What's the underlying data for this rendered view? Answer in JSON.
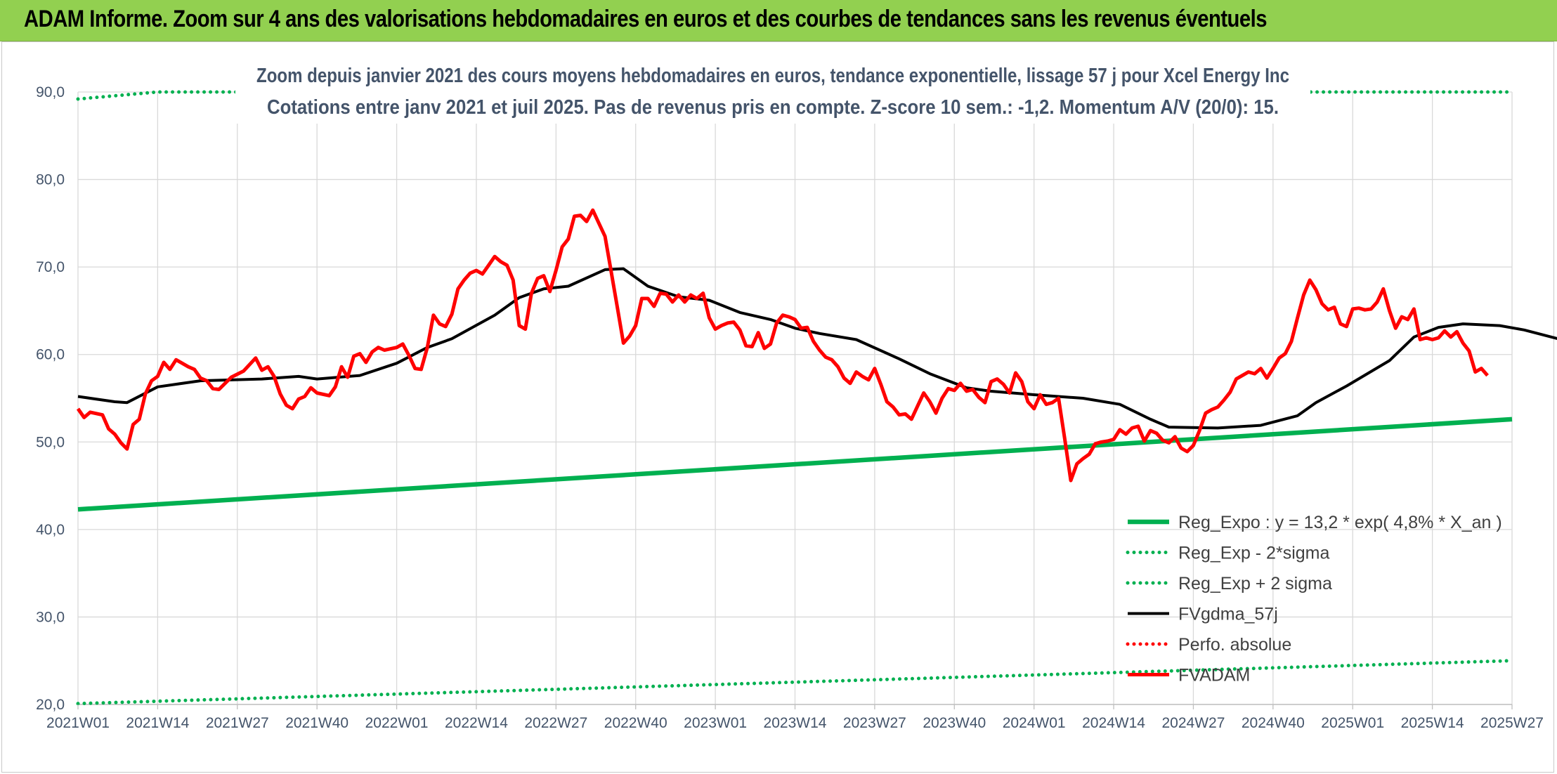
{
  "header": {
    "title": "ADAM Informe. Zoom sur 4 ans des valorisations hebdomadaires en euros et des courbes de tendances sans les revenus éventuels"
  },
  "chart_data": {
    "type": "line",
    "title": "Zoom depuis janvier 2021 des cours moyens hebdomadaires en euros, tendance exponentielle, lissage 57 j pour Xcel Energy Inc",
    "subtitle": "Cotations entre janv 2021 et juil 2025. Pas de revenus pris en compte. Z-score 10 sem.: -1,2. Momentum A/V (20/0): 15.",
    "xlabel": "",
    "ylabel": "",
    "ylim": [
      20,
      90
    ],
    "y_ticks": [
      "20,0",
      "30,0",
      "40,0",
      "50,0",
      "60,0",
      "70,0",
      "80,0",
      "90,0"
    ],
    "x_ticks": [
      "2021W01",
      "2021W14",
      "2021W27",
      "2021W40",
      "2022W01",
      "2022W14",
      "2022W27",
      "2022W40",
      "2023W01",
      "2023W14",
      "2023W27",
      "2023W40",
      "2024W01",
      "2024W14",
      "2024W27",
      "2024W40",
      "2025W01",
      "2025W14",
      "2025W27"
    ],
    "grid": true,
    "legend_position": "bottom-right",
    "series": [
      {
        "name": "Reg_Expo : y = 13,2 * exp( 4,8% *  X_an )",
        "style": "solid",
        "color": "#00b050",
        "values": [
          [
            0,
            42.3
          ],
          [
            234,
            52.6
          ]
        ]
      },
      {
        "name": "Reg_Exp - 2*sigma",
        "style": "dotted",
        "color": "#00b050",
        "values": [
          [
            0,
            20.1
          ],
          [
            234,
            25.0
          ]
        ]
      },
      {
        "name": "Reg_Exp + 2 sigma",
        "style": "dotted",
        "color": "#00b050",
        "values": [
          [
            0,
            89.2
          ],
          [
            13,
            90.0
          ],
          [
            234,
            90.0
          ]
        ]
      },
      {
        "name": "FVgdma_57j",
        "style": "solid",
        "color": "#000000",
        "values": [
          [
            0,
            55.2
          ],
          [
            6,
            54.6
          ],
          [
            8,
            54.5
          ],
          [
            13,
            56.3
          ],
          [
            20,
            57.0
          ],
          [
            30,
            57.2
          ],
          [
            36,
            57.5
          ],
          [
            39,
            57.2
          ],
          [
            46,
            57.6
          ],
          [
            52,
            59.0
          ],
          [
            57,
            60.8
          ],
          [
            61,
            61.8
          ],
          [
            68,
            64.5
          ],
          [
            72,
            66.5
          ],
          [
            76,
            67.5
          ],
          [
            80,
            67.8
          ],
          [
            86,
            69.7
          ],
          [
            89,
            69.8
          ],
          [
            93,
            67.8
          ],
          [
            98,
            66.6
          ],
          [
            103,
            66.2
          ],
          [
            108,
            64.8
          ],
          [
            113,
            64.0
          ],
          [
            117,
            63.0
          ],
          [
            121,
            62.4
          ],
          [
            127,
            61.7
          ],
          [
            134,
            59.5
          ],
          [
            139,
            57.8
          ],
          [
            145,
            56.2
          ],
          [
            149,
            55.8
          ],
          [
            156,
            55.4
          ],
          [
            164,
            55.0
          ],
          [
            170,
            54.3
          ],
          [
            175,
            52.6
          ],
          [
            178,
            51.7
          ],
          [
            186,
            51.6
          ],
          [
            193,
            51.9
          ],
          [
            199,
            53.0
          ],
          [
            202,
            54.5
          ],
          [
            207,
            56.4
          ],
          [
            214,
            59.3
          ],
          [
            218,
            62.0
          ],
          [
            222,
            63.1
          ],
          [
            226,
            63.5
          ],
          [
            232,
            63.3
          ],
          [
            236,
            62.8
          ],
          [
            242,
            61.7
          ],
          [
            250,
            59.5
          ],
          [
            253,
            59.1
          ]
        ]
      },
      {
        "name": "Perfo. absolue",
        "style": "dotted",
        "color": "#ff0000",
        "values": []
      },
      {
        "name": "FVADAM",
        "style": "solid",
        "color": "#ff0000",
        "values": [
          [
            0,
            53.8
          ],
          [
            1,
            52.8
          ],
          [
            2,
            53.4
          ],
          [
            4,
            53.1
          ],
          [
            5,
            51.5
          ],
          [
            6,
            50.9
          ],
          [
            7,
            49.9
          ],
          [
            8,
            49.2
          ],
          [
            9,
            52.0
          ],
          [
            10,
            52.6
          ],
          [
            11,
            55.5
          ],
          [
            12,
            57.0
          ],
          [
            13,
            57.5
          ],
          [
            14,
            59.1
          ],
          [
            15,
            58.3
          ],
          [
            16,
            59.4
          ],
          [
            18,
            58.6
          ],
          [
            19,
            58.3
          ],
          [
            20,
            57.3
          ],
          [
            21,
            57.0
          ],
          [
            22,
            56.1
          ],
          [
            23,
            56.0
          ],
          [
            25,
            57.4
          ],
          [
            27,
            58.1
          ],
          [
            29,
            59.6
          ],
          [
            30,
            58.2
          ],
          [
            31,
            58.6
          ],
          [
            32,
            57.5
          ],
          [
            33,
            55.5
          ],
          [
            34,
            54.2
          ],
          [
            35,
            53.8
          ],
          [
            36,
            54.9
          ],
          [
            37,
            55.2
          ],
          [
            38,
            56.2
          ],
          [
            39,
            55.6
          ],
          [
            41,
            55.3
          ],
          [
            42,
            56.3
          ],
          [
            43,
            58.6
          ],
          [
            44,
            57.4
          ],
          [
            45,
            59.8
          ],
          [
            46,
            60.1
          ],
          [
            47,
            59.1
          ],
          [
            48,
            60.3
          ],
          [
            49,
            60.8
          ],
          [
            50,
            60.5
          ],
          [
            52,
            60.8
          ],
          [
            53,
            61.2
          ],
          [
            54,
            59.9
          ],
          [
            55,
            58.4
          ],
          [
            56,
            58.3
          ],
          [
            57,
            60.8
          ],
          [
            58,
            64.5
          ],
          [
            59,
            63.5
          ],
          [
            60,
            63.2
          ],
          [
            61,
            64.6
          ],
          [
            62,
            67.5
          ],
          [
            63,
            68.5
          ],
          [
            64,
            69.3
          ],
          [
            65,
            69.6
          ],
          [
            66,
            69.2
          ],
          [
            67,
            70.2
          ],
          [
            68,
            71.2
          ],
          [
            69,
            70.6
          ],
          [
            70,
            70.2
          ],
          [
            71,
            68.5
          ],
          [
            72,
            63.3
          ],
          [
            73,
            62.9
          ],
          [
            74,
            67.0
          ],
          [
            75,
            68.7
          ],
          [
            76,
            69.0
          ],
          [
            77,
            67.2
          ],
          [
            78,
            69.6
          ],
          [
            79,
            72.3
          ],
          [
            80,
            73.2
          ],
          [
            81,
            75.8
          ],
          [
            82,
            75.9
          ],
          [
            83,
            75.2
          ],
          [
            84,
            76.5
          ],
          [
            85,
            75.0
          ],
          [
            86,
            73.5
          ],
          [
            87,
            69.5
          ],
          [
            88,
            65.4
          ],
          [
            89,
            61.3
          ],
          [
            90,
            62.1
          ],
          [
            91,
            63.3
          ],
          [
            92,
            66.4
          ],
          [
            93,
            66.4
          ],
          [
            94,
            65.5
          ],
          [
            95,
            67.0
          ],
          [
            96,
            66.9
          ],
          [
            97,
            66.0
          ],
          [
            98,
            66.8
          ],
          [
            99,
            66.0
          ],
          [
            100,
            66.8
          ],
          [
            101,
            66.4
          ],
          [
            102,
            67.0
          ],
          [
            103,
            64.2
          ],
          [
            104,
            62.9
          ],
          [
            105,
            63.3
          ],
          [
            106,
            63.6
          ],
          [
            107,
            63.7
          ],
          [
            108,
            62.8
          ],
          [
            109,
            61.0
          ],
          [
            110,
            60.9
          ],
          [
            111,
            62.5
          ],
          [
            112,
            60.7
          ],
          [
            113,
            61.2
          ],
          [
            114,
            63.6
          ],
          [
            115,
            64.5
          ],
          [
            116,
            64.3
          ],
          [
            117,
            64.0
          ],
          [
            118,
            63.0
          ],
          [
            119,
            63.1
          ],
          [
            120,
            61.5
          ],
          [
            121,
            60.5
          ],
          [
            122,
            59.7
          ],
          [
            123,
            59.4
          ],
          [
            124,
            58.6
          ],
          [
            125,
            57.3
          ],
          [
            126,
            56.7
          ],
          [
            127,
            58.0
          ],
          [
            128,
            57.5
          ],
          [
            129,
            57.1
          ],
          [
            130,
            58.4
          ],
          [
            131,
            56.6
          ],
          [
            132,
            54.6
          ],
          [
            133,
            54.0
          ],
          [
            134,
            53.1
          ],
          [
            135,
            53.2
          ],
          [
            136,
            52.6
          ],
          [
            137,
            54.1
          ],
          [
            138,
            55.6
          ],
          [
            139,
            54.6
          ],
          [
            140,
            53.3
          ],
          [
            141,
            55.0
          ],
          [
            142,
            56.1
          ],
          [
            143,
            55.9
          ],
          [
            144,
            56.7
          ],
          [
            145,
            55.8
          ],
          [
            146,
            56.0
          ],
          [
            147,
            55.1
          ],
          [
            148,
            54.5
          ],
          [
            149,
            56.9
          ],
          [
            150,
            57.2
          ],
          [
            151,
            56.6
          ],
          [
            152,
            55.6
          ],
          [
            153,
            57.9
          ],
          [
            154,
            56.9
          ],
          [
            155,
            54.6
          ],
          [
            156,
            53.8
          ],
          [
            157,
            55.4
          ],
          [
            158,
            54.3
          ],
          [
            159,
            54.5
          ],
          [
            160,
            55.0
          ],
          [
            161,
            50.4
          ],
          [
            162,
            45.6
          ],
          [
            163,
            47.5
          ],
          [
            164,
            48.1
          ],
          [
            165,
            48.6
          ],
          [
            166,
            49.8
          ],
          [
            167,
            50.0
          ],
          [
            168,
            50.1
          ],
          [
            169,
            50.3
          ],
          [
            170,
            51.4
          ],
          [
            171,
            50.9
          ],
          [
            172,
            51.6
          ],
          [
            173,
            51.8
          ],
          [
            174,
            50.1
          ],
          [
            175,
            51.3
          ],
          [
            176,
            51.0
          ],
          [
            177,
            50.2
          ],
          [
            178,
            49.9
          ],
          [
            179,
            50.6
          ],
          [
            180,
            49.3
          ],
          [
            181,
            48.9
          ],
          [
            182,
            49.6
          ],
          [
            183,
            51.3
          ],
          [
            184,
            53.3
          ],
          [
            185,
            53.7
          ],
          [
            186,
            54.0
          ],
          [
            187,
            54.8
          ],
          [
            188,
            55.7
          ],
          [
            189,
            57.2
          ],
          [
            190,
            57.6
          ],
          [
            191,
            58.0
          ],
          [
            192,
            57.8
          ],
          [
            193,
            58.4
          ],
          [
            194,
            57.3
          ],
          [
            195,
            58.4
          ],
          [
            196,
            59.6
          ],
          [
            197,
            60.1
          ],
          [
            198,
            61.5
          ],
          [
            199,
            64.2
          ],
          [
            200,
            66.8
          ],
          [
            201,
            68.5
          ],
          [
            202,
            67.4
          ],
          [
            203,
            65.8
          ],
          [
            204,
            65.1
          ],
          [
            205,
            65.4
          ],
          [
            206,
            63.5
          ],
          [
            207,
            63.2
          ],
          [
            208,
            65.2
          ],
          [
            209,
            65.3
          ],
          [
            210,
            65.1
          ],
          [
            211,
            65.2
          ],
          [
            212,
            66.0
          ],
          [
            213,
            67.5
          ],
          [
            214,
            65.0
          ],
          [
            215,
            63.0
          ],
          [
            216,
            64.3
          ],
          [
            217,
            64.0
          ],
          [
            218,
            65.2
          ],
          [
            219,
            61.7
          ],
          [
            220,
            61.9
          ],
          [
            221,
            61.7
          ],
          [
            222,
            61.9
          ],
          [
            223,
            62.7
          ],
          [
            224,
            62.0
          ],
          [
            225,
            62.6
          ],
          [
            226,
            61.3
          ],
          [
            227,
            60.4
          ],
          [
            228,
            58.0
          ],
          [
            229,
            58.4
          ],
          [
            230,
            57.6
          ]
        ]
      }
    ]
  }
}
